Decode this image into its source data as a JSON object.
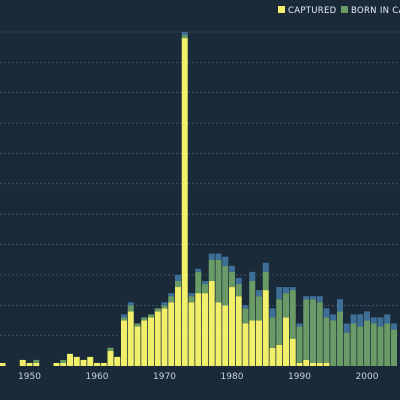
{
  "chart_data": {
    "type": "bar",
    "stacked": true,
    "title": "",
    "xlabel": "",
    "ylabel": "",
    "xlim": [
      1945,
      2005
    ],
    "ylim": [
      0,
      110
    ],
    "grid": true,
    "legend_position": "top-right",
    "x_ticks": [
      1950,
      1960,
      1970,
      1980,
      1990,
      2000
    ],
    "x": [
      1945,
      1946,
      1947,
      1948,
      1949,
      1950,
      1951,
      1952,
      1953,
      1954,
      1955,
      1956,
      1957,
      1958,
      1959,
      1960,
      1961,
      1962,
      1963,
      1964,
      1965,
      1966,
      1967,
      1968,
      1969,
      1970,
      1971,
      1972,
      1973,
      1974,
      1975,
      1976,
      1977,
      1978,
      1979,
      1980,
      1981,
      1982,
      1983,
      1984,
      1985,
      1986,
      1987,
      1988,
      1989,
      1990,
      1991,
      1992,
      1993,
      1994,
      1995,
      1996,
      1997,
      1998,
      1999,
      2000,
      2001,
      2002,
      2003,
      2004
    ],
    "series": [
      {
        "name": "CAPTURED",
        "color": "#f2f06b",
        "values": [
          1,
          1,
          0,
          0,
          2,
          1,
          1,
          0,
          0,
          1,
          1,
          4,
          3,
          2,
          3,
          1,
          1,
          5,
          3,
          15,
          18,
          13,
          15,
          16,
          18,
          19,
          21,
          26,
          108,
          21,
          24,
          24,
          28,
          21,
          20,
          26,
          23,
          14,
          15,
          15,
          25,
          6,
          7,
          16,
          9,
          1,
          2,
          1,
          1,
          1,
          0,
          0,
          0,
          0,
          0,
          0,
          0,
          0,
          0,
          0
        ]
      },
      {
        "name": "BORN IN CAPTIVITY",
        "color": "#6a9a66",
        "values": [
          0,
          0,
          0,
          0,
          0,
          0,
          1,
          0,
          0,
          0,
          1,
          0,
          0,
          0,
          0,
          0,
          0,
          1,
          0,
          1,
          2,
          1,
          1,
          1,
          1,
          1,
          2,
          2,
          1,
          2,
          7,
          3,
          7,
          14,
          13,
          5,
          4,
          5,
          13,
          8,
          6,
          10,
          15,
          8,
          16,
          12,
          20,
          21,
          20,
          15,
          15,
          18,
          11,
          14,
          13,
          15,
          14,
          13,
          14,
          12
        ]
      },
      {
        "name": "",
        "color": "#3e6f99",
        "values": [
          0,
          0,
          0,
          0,
          0,
          0,
          0,
          0,
          0,
          0,
          0,
          0,
          0,
          0,
          0,
          0,
          0,
          0,
          0,
          1,
          1,
          0,
          0,
          0,
          0,
          1,
          1,
          2,
          1,
          1,
          1,
          1,
          2,
          2,
          3,
          2,
          2,
          1,
          3,
          2,
          3,
          3,
          4,
          2,
          1,
          1,
          1,
          1,
          2,
          3,
          2,
          4,
          3,
          3,
          4,
          3,
          2,
          3,
          3,
          2
        ]
      }
    ]
  },
  "legend": {
    "captured_label": "CAPTURED",
    "born_label": "BORN IN CAPTIVITY"
  }
}
